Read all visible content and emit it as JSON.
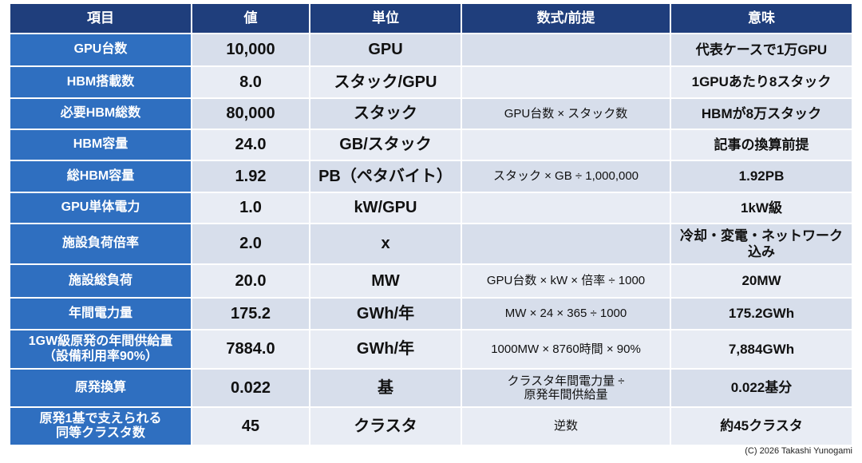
{
  "table": {
    "header": [
      "項目",
      "値",
      "単位",
      "数式/前提",
      "意味"
    ],
    "rows": [
      [
        "GPU台数",
        "10,000",
        "GPU",
        null,
        "代表ケースで1万GPU"
      ],
      [
        "HBM搭載数",
        "8.0",
        "スタック/GPU",
        null,
        "1GPUあたり8スタック"
      ],
      [
        "必要HBM総数",
        "80,000",
        "スタック",
        "GPU台数 × スタック数",
        "HBMが8万スタック"
      ],
      [
        "HBM容量",
        "24.0",
        "GB/スタック",
        null,
        "記事の換算前提"
      ],
      [
        "総HBM容量",
        "1.92",
        "PB（ペタバイト）",
        "スタック × GB ÷ 1,000,000",
        "1.92PB"
      ],
      [
        "GPU単体電力",
        "1.0",
        "kW/GPU",
        null,
        "1kW級"
      ],
      [
        "施設負荷倍率",
        "2.0",
        "x",
        null,
        "冷却・変電・ネットワーク\n込み"
      ],
      [
        "施設総負荷",
        "20.0",
        "MW",
        "GPU台数 × kW × 倍率 ÷ 1000",
        "20MW"
      ],
      [
        "年間電力量",
        "175.2",
        "GWh/年",
        "MW × 24 × 365 ÷ 1000",
        "175.2GWh"
      ],
      [
        "1GW級原発の年間供給量\n（設備利用率90%）",
        "7884.0",
        "GWh/年",
        "1000MW × 8760時間 × 90%",
        "7,884GWh"
      ],
      [
        "原発換算",
        "0.022",
        "基",
        "クラスタ年間電力量 ÷\n原発年間供給量",
        "0.022基分"
      ],
      [
        "原発1基で支えられる\n同等クラスタ数",
        "45",
        "クラスタ",
        "逆数",
        "約45クラスタ"
      ]
    ]
  },
  "footer": "(C)  2026 Takashi Yunogami"
}
